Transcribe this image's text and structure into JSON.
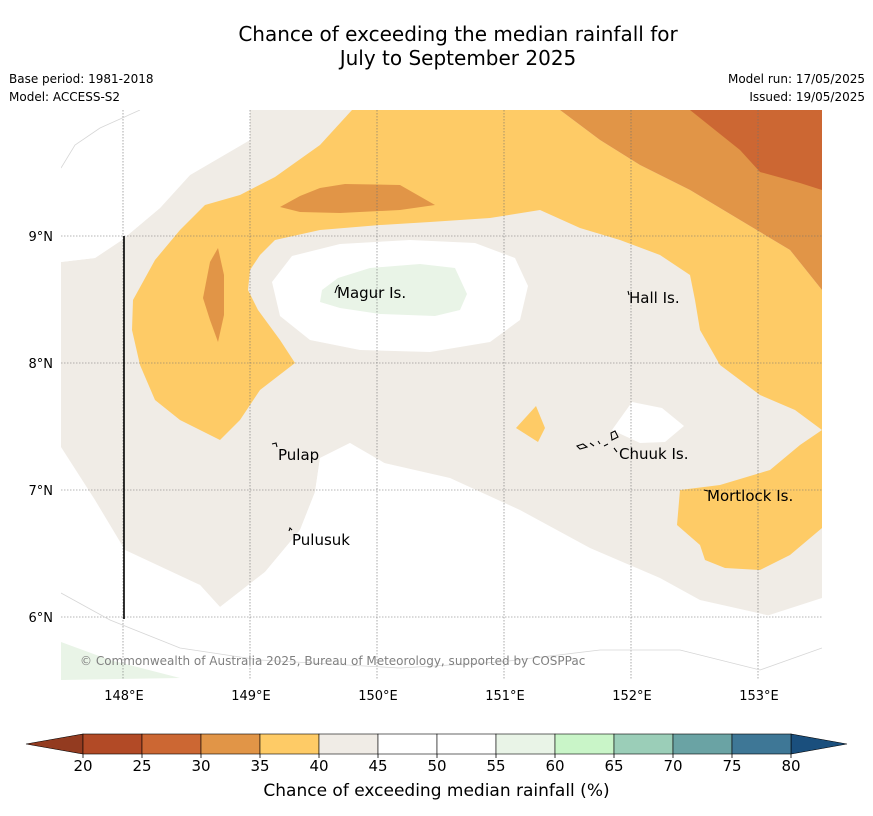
{
  "header": {
    "title_line1": "Chance of exceeding the median rainfall for",
    "title_line2": "July to September 2025",
    "base_period": "Base period: 1981-2018",
    "model": "Model: ACCESS-S2",
    "model_run": "Model run: 17/05/2025",
    "issued": "Issued: 19/05/2025"
  },
  "map": {
    "lat_labels": [
      "9°N",
      "8°N",
      "7°N",
      "6°N"
    ],
    "lon_labels": [
      "148°E",
      "149°E",
      "150°E",
      "151°E",
      "152°E",
      "153°E"
    ],
    "places": [
      "Magur Is.",
      "Hall Is.",
      "Pulap",
      "Chuuk Is.",
      "Mortlock Is.",
      "Pulusuk"
    ],
    "copyright": "© Commonwealth of Australia 2025, Bureau of Meteorology, supported by COSPPac"
  },
  "colorbar": {
    "ticks": [
      "20",
      "25",
      "30",
      "35",
      "40",
      "45",
      "50",
      "55",
      "60",
      "65",
      "70",
      "75",
      "80"
    ],
    "colors": [
      "#b24a26",
      "#cc6733",
      "#e19547",
      "#fecb66",
      "#f0ece6",
      "#ffffff",
      "#ffffff",
      "#e9f4e7",
      "#c9f5c8",
      "#9bceb8",
      "#6aa3a4",
      "#3e7796"
    ],
    "under_color": "#933b20",
    "over_color": "#1a4f7d",
    "label": "Chance of exceeding median rainfall (%)"
  }
}
